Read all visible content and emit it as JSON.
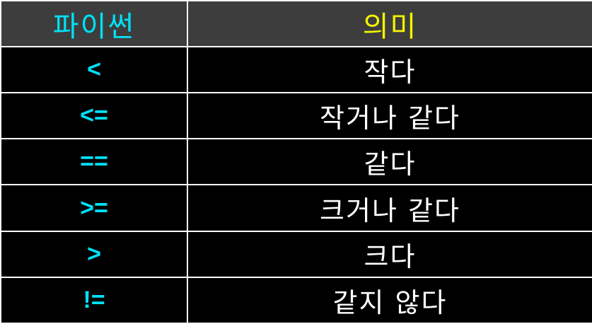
{
  "header": {
    "operator_col": "파이썬",
    "meaning_col": "의미"
  },
  "rows": [
    {
      "operator": "<",
      "meaning": "작다"
    },
    {
      "operator": "<=",
      "meaning": "작거나 같다"
    },
    {
      "operator": "==",
      "meaning": "같다"
    },
    {
      "operator": ">=",
      "meaning": "크거나 같다"
    },
    {
      "operator": ">",
      "meaning": "크다"
    },
    {
      "operator": "!=",
      "meaning": "같지 않다"
    }
  ],
  "colors": {
    "header_bg": "#3d3d3d",
    "body_bg": "#000000",
    "operator_text": "#00e1f5",
    "meaning_header_text": "#f4f400",
    "meaning_text": "#ffffff",
    "border": "#ffffff"
  }
}
